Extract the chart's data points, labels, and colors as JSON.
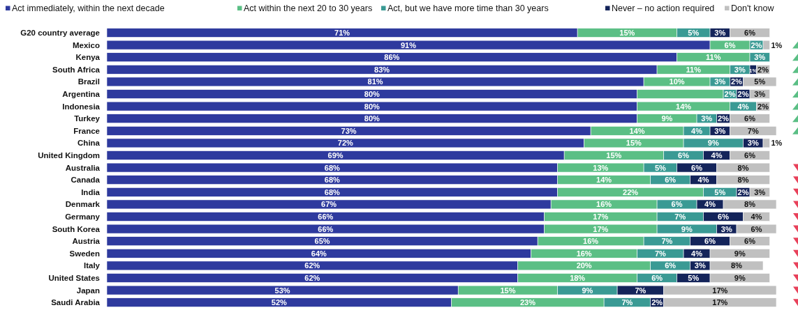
{
  "chart_data": {
    "type": "bar",
    "orientation": "horizontal",
    "stacked": true,
    "legend": "top",
    "categories": [
      "G20 country average",
      "Mexico",
      "Kenya",
      "South Africa",
      "Brazil",
      "Argentina",
      "Indonesia",
      "Turkey",
      "France",
      "China",
      "United Kingdom",
      "Australia",
      "Canada",
      "India",
      "Denmark",
      "Germany",
      "South Korea",
      "Austria",
      "Sweden",
      "Italy",
      "United States",
      "Japan",
      "Saudi Arabia"
    ],
    "series": [
      {
        "name": "Act immediately, within the next decade",
        "color": "#2e3a9e",
        "values": [
          71,
          91,
          86,
          83,
          81,
          80,
          80,
          80,
          73,
          72,
          69,
          68,
          68,
          68,
          67,
          66,
          66,
          65,
          64,
          62,
          62,
          53,
          52
        ],
        "value_labels": [
          "71%",
          "91%",
          "86%",
          "83%",
          "81%",
          "80%",
          "80%",
          "80%",
          "73%",
          "72%",
          "69%",
          "68%",
          "68%",
          "68%",
          "67%",
          "66%",
          "66%",
          "65%",
          "64%",
          "62%",
          "62%",
          "53%",
          "52%"
        ]
      },
      {
        "name": "Act within the next 20 to 30 years",
        "color": "#5bbf85",
        "values": [
          15,
          6,
          11,
          11,
          10,
          13,
          14,
          9,
          14,
          15,
          15,
          13,
          14,
          22,
          16,
          17,
          17,
          16,
          16,
          20,
          18,
          15,
          23
        ],
        "value_labels": [
          "15%",
          "6%",
          "11%",
          "11%",
          "10%",
          null,
          "14%",
          "9%",
          "14%",
          "15%",
          "15%",
          "13%",
          "14%",
          "22%",
          "16%",
          "17%",
          "17%",
          "16%",
          "16%",
          "20%",
          "18%",
          "15%",
          "23%"
        ]
      },
      {
        "name": "Act, but we have more time than 30 years",
        "color": "#3a9a94",
        "values": [
          5,
          2,
          3,
          3,
          3,
          2,
          4,
          3,
          4,
          9,
          6,
          5,
          6,
          5,
          6,
          7,
          9,
          7,
          7,
          6,
          6,
          9,
          7
        ],
        "value_labels": [
          "5%",
          "2%",
          "3%",
          "3%",
          "3%",
          "2%",
          "4%",
          "3%",
          "4%",
          "9%",
          "6%",
          "5%",
          "6%",
          "5%",
          "6%",
          "7%",
          "9%",
          "7%",
          "7%",
          "6%",
          "6%",
          "9%",
          "7%"
        ]
      },
      {
        "name": "Never – no action required",
        "color": "#14245a",
        "values": [
          3,
          null,
          null,
          1,
          2,
          2,
          null,
          2,
          3,
          3,
          4,
          6,
          4,
          2,
          4,
          6,
          3,
          6,
          4,
          3,
          5,
          7,
          2
        ],
        "value_labels": [
          "3%",
          null,
          null,
          "1%",
          "2%",
          "2%",
          null,
          "2%",
          "3%",
          "3%",
          "4%",
          "6%",
          "4%",
          "2%",
          "4%",
          "6%",
          "3%",
          "6%",
          "4%",
          "3%",
          "5%",
          "7%",
          "2%"
        ]
      },
      {
        "name": "Don't know",
        "color": "#c0c0c0",
        "values": [
          6,
          1,
          null,
          2,
          5,
          3,
          2,
          6,
          7,
          1,
          6,
          8,
          8,
          3,
          8,
          4,
          6,
          6,
          9,
          8,
          9,
          17,
          17
        ],
        "value_labels": [
          "6%",
          "1%",
          null,
          "2%",
          "5%",
          "3%",
          "2%",
          "6%",
          "7%",
          "1%",
          "6%",
          "8%",
          "8%",
          "3%",
          "8%",
          "4%",
          "6%",
          "6%",
          "9%",
          "8%",
          "9%",
          "17%",
          "17%"
        ]
      }
    ]
  }
}
